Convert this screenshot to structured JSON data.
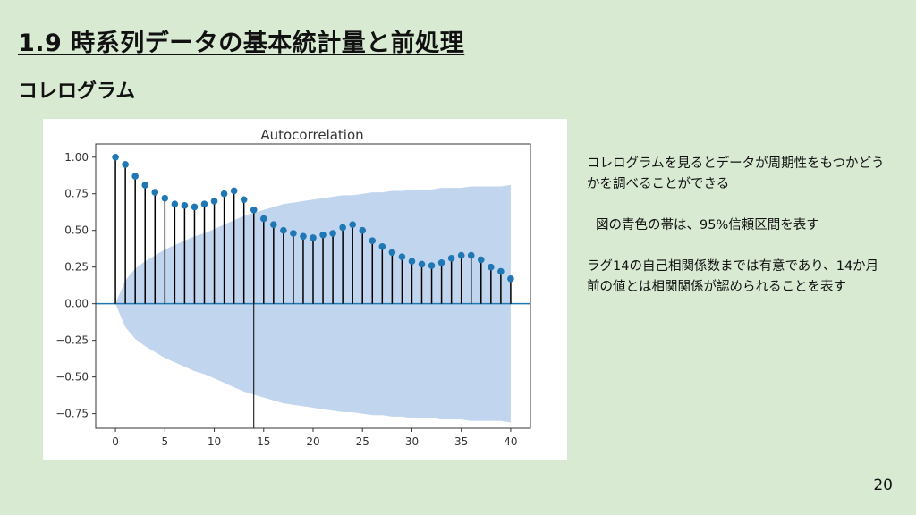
{
  "slide": {
    "title": "1.9 時系列データの基本統計量と前処理",
    "section": "コレログラム",
    "page_number": "20"
  },
  "notes": {
    "line1": "コレログラムを見るとデータが周期性をもつかどうかを調べることができる",
    "line2": "図の青色の帯は、95%信頼区間を表す",
    "line3": "ラグ14の自己相関係数までは有意であり、14か月前の値とは相関関係が認められることを表す"
  },
  "colors": {
    "background": "#d9ead3",
    "stem": "#000000",
    "marker": "#1f77b4",
    "band": "#aec7e8",
    "zero_line": "#1f77b4"
  },
  "chart_data": {
    "type": "scatter",
    "title": "Autocorrelation",
    "xlabel": "",
    "ylabel": "",
    "xlim": [
      -2,
      42
    ],
    "ylim": [
      -0.85,
      1.09
    ],
    "xticks": [
      "0",
      "5",
      "10",
      "15",
      "20",
      "25",
      "30",
      "35",
      "40"
    ],
    "yticks": [
      "1.00",
      "0.75",
      "0.50",
      "0.25",
      "0.00",
      "−0.25",
      "−0.50",
      "−0.75"
    ],
    "lags": [
      0,
      1,
      2,
      3,
      4,
      5,
      6,
      7,
      8,
      9,
      10,
      11,
      12,
      13,
      14,
      15,
      16,
      17,
      18,
      19,
      20,
      21,
      22,
      23,
      24,
      25,
      26,
      27,
      28,
      29,
      30,
      31,
      32,
      33,
      34,
      35,
      36,
      37,
      38,
      39,
      40
    ],
    "acf": [
      1.0,
      0.95,
      0.87,
      0.81,
      0.76,
      0.72,
      0.68,
      0.67,
      0.66,
      0.68,
      0.7,
      0.75,
      0.77,
      0.71,
      0.64,
      0.58,
      0.54,
      0.5,
      0.48,
      0.46,
      0.45,
      0.47,
      0.48,
      0.52,
      0.54,
      0.5,
      0.43,
      0.39,
      0.35,
      0.32,
      0.29,
      0.27,
      0.26,
      0.28,
      0.31,
      0.33,
      0.33,
      0.3,
      0.25,
      0.22,
      0.17
    ],
    "confidence_band_upper": [
      0.0,
      0.16,
      0.24,
      0.29,
      0.33,
      0.37,
      0.4,
      0.43,
      0.46,
      0.48,
      0.51,
      0.54,
      0.57,
      0.6,
      0.62,
      0.64,
      0.66,
      0.68,
      0.69,
      0.7,
      0.71,
      0.72,
      0.73,
      0.74,
      0.74,
      0.75,
      0.76,
      0.76,
      0.77,
      0.77,
      0.78,
      0.78,
      0.78,
      0.79,
      0.79,
      0.79,
      0.8,
      0.8,
      0.8,
      0.8,
      0.81
    ],
    "highlight_lag": 14,
    "grid": false
  }
}
